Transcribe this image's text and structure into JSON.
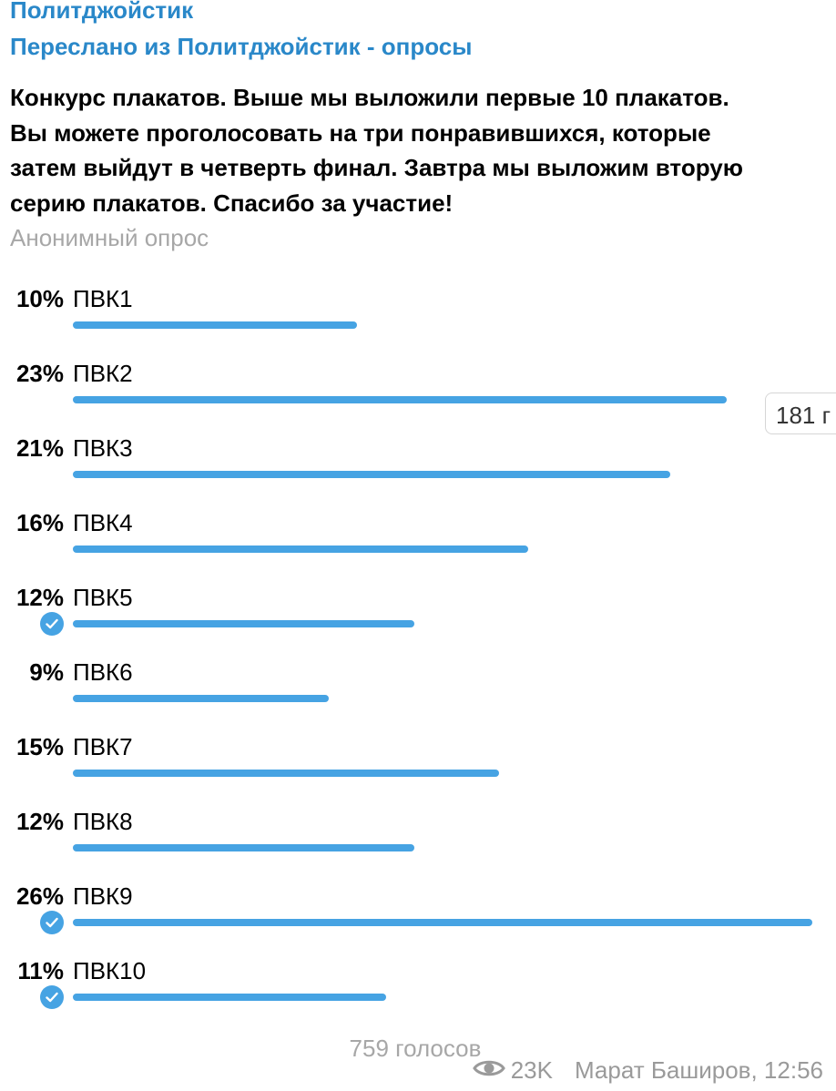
{
  "header": {
    "channel": "Политджойстик",
    "forwarded": "Переслано из Политджойстик - опросы"
  },
  "poll": {
    "question_lines": [
      "Конкурс плакатов. Выше мы выложили первые 10 плакатов.",
      "Вы можете проголосовать на три понравившихся, которые",
      "затем выйдут в четверть финал. Завтра мы выложим вторую",
      "серию плакатов. Спасибо за участие!"
    ],
    "type": "Анонимный опрос",
    "options": [
      {
        "percent": "10%",
        "label": "ПВК1",
        "value": 10,
        "checked": false
      },
      {
        "percent": "23%",
        "label": "ПВК2",
        "value": 23,
        "checked": false
      },
      {
        "percent": "21%",
        "label": "ПВК3",
        "value": 21,
        "checked": false
      },
      {
        "percent": "16%",
        "label": "ПВК4",
        "value": 16,
        "checked": false
      },
      {
        "percent": "12%",
        "label": "ПВК5",
        "value": 12,
        "checked": true
      },
      {
        "percent": "9%",
        "label": "ПВК6",
        "value": 9,
        "checked": false
      },
      {
        "percent": "15%",
        "label": "ПВК7",
        "value": 15,
        "checked": false
      },
      {
        "percent": "12%",
        "label": "ПВК8",
        "value": 12,
        "checked": false
      },
      {
        "percent": "26%",
        "label": "ПВК9",
        "value": 26,
        "checked": true
      },
      {
        "percent": "11%",
        "label": "ПВК10",
        "value": 11,
        "checked": true
      }
    ],
    "total_votes": "759 голосов"
  },
  "side_badge": "181 г",
  "footer": {
    "views": "23K",
    "author_time": "Марат Баширов, 12:56"
  },
  "colors": {
    "accent": "#2a88c9",
    "bar": "#46a3e3",
    "muted": "#a7a7a7"
  }
}
